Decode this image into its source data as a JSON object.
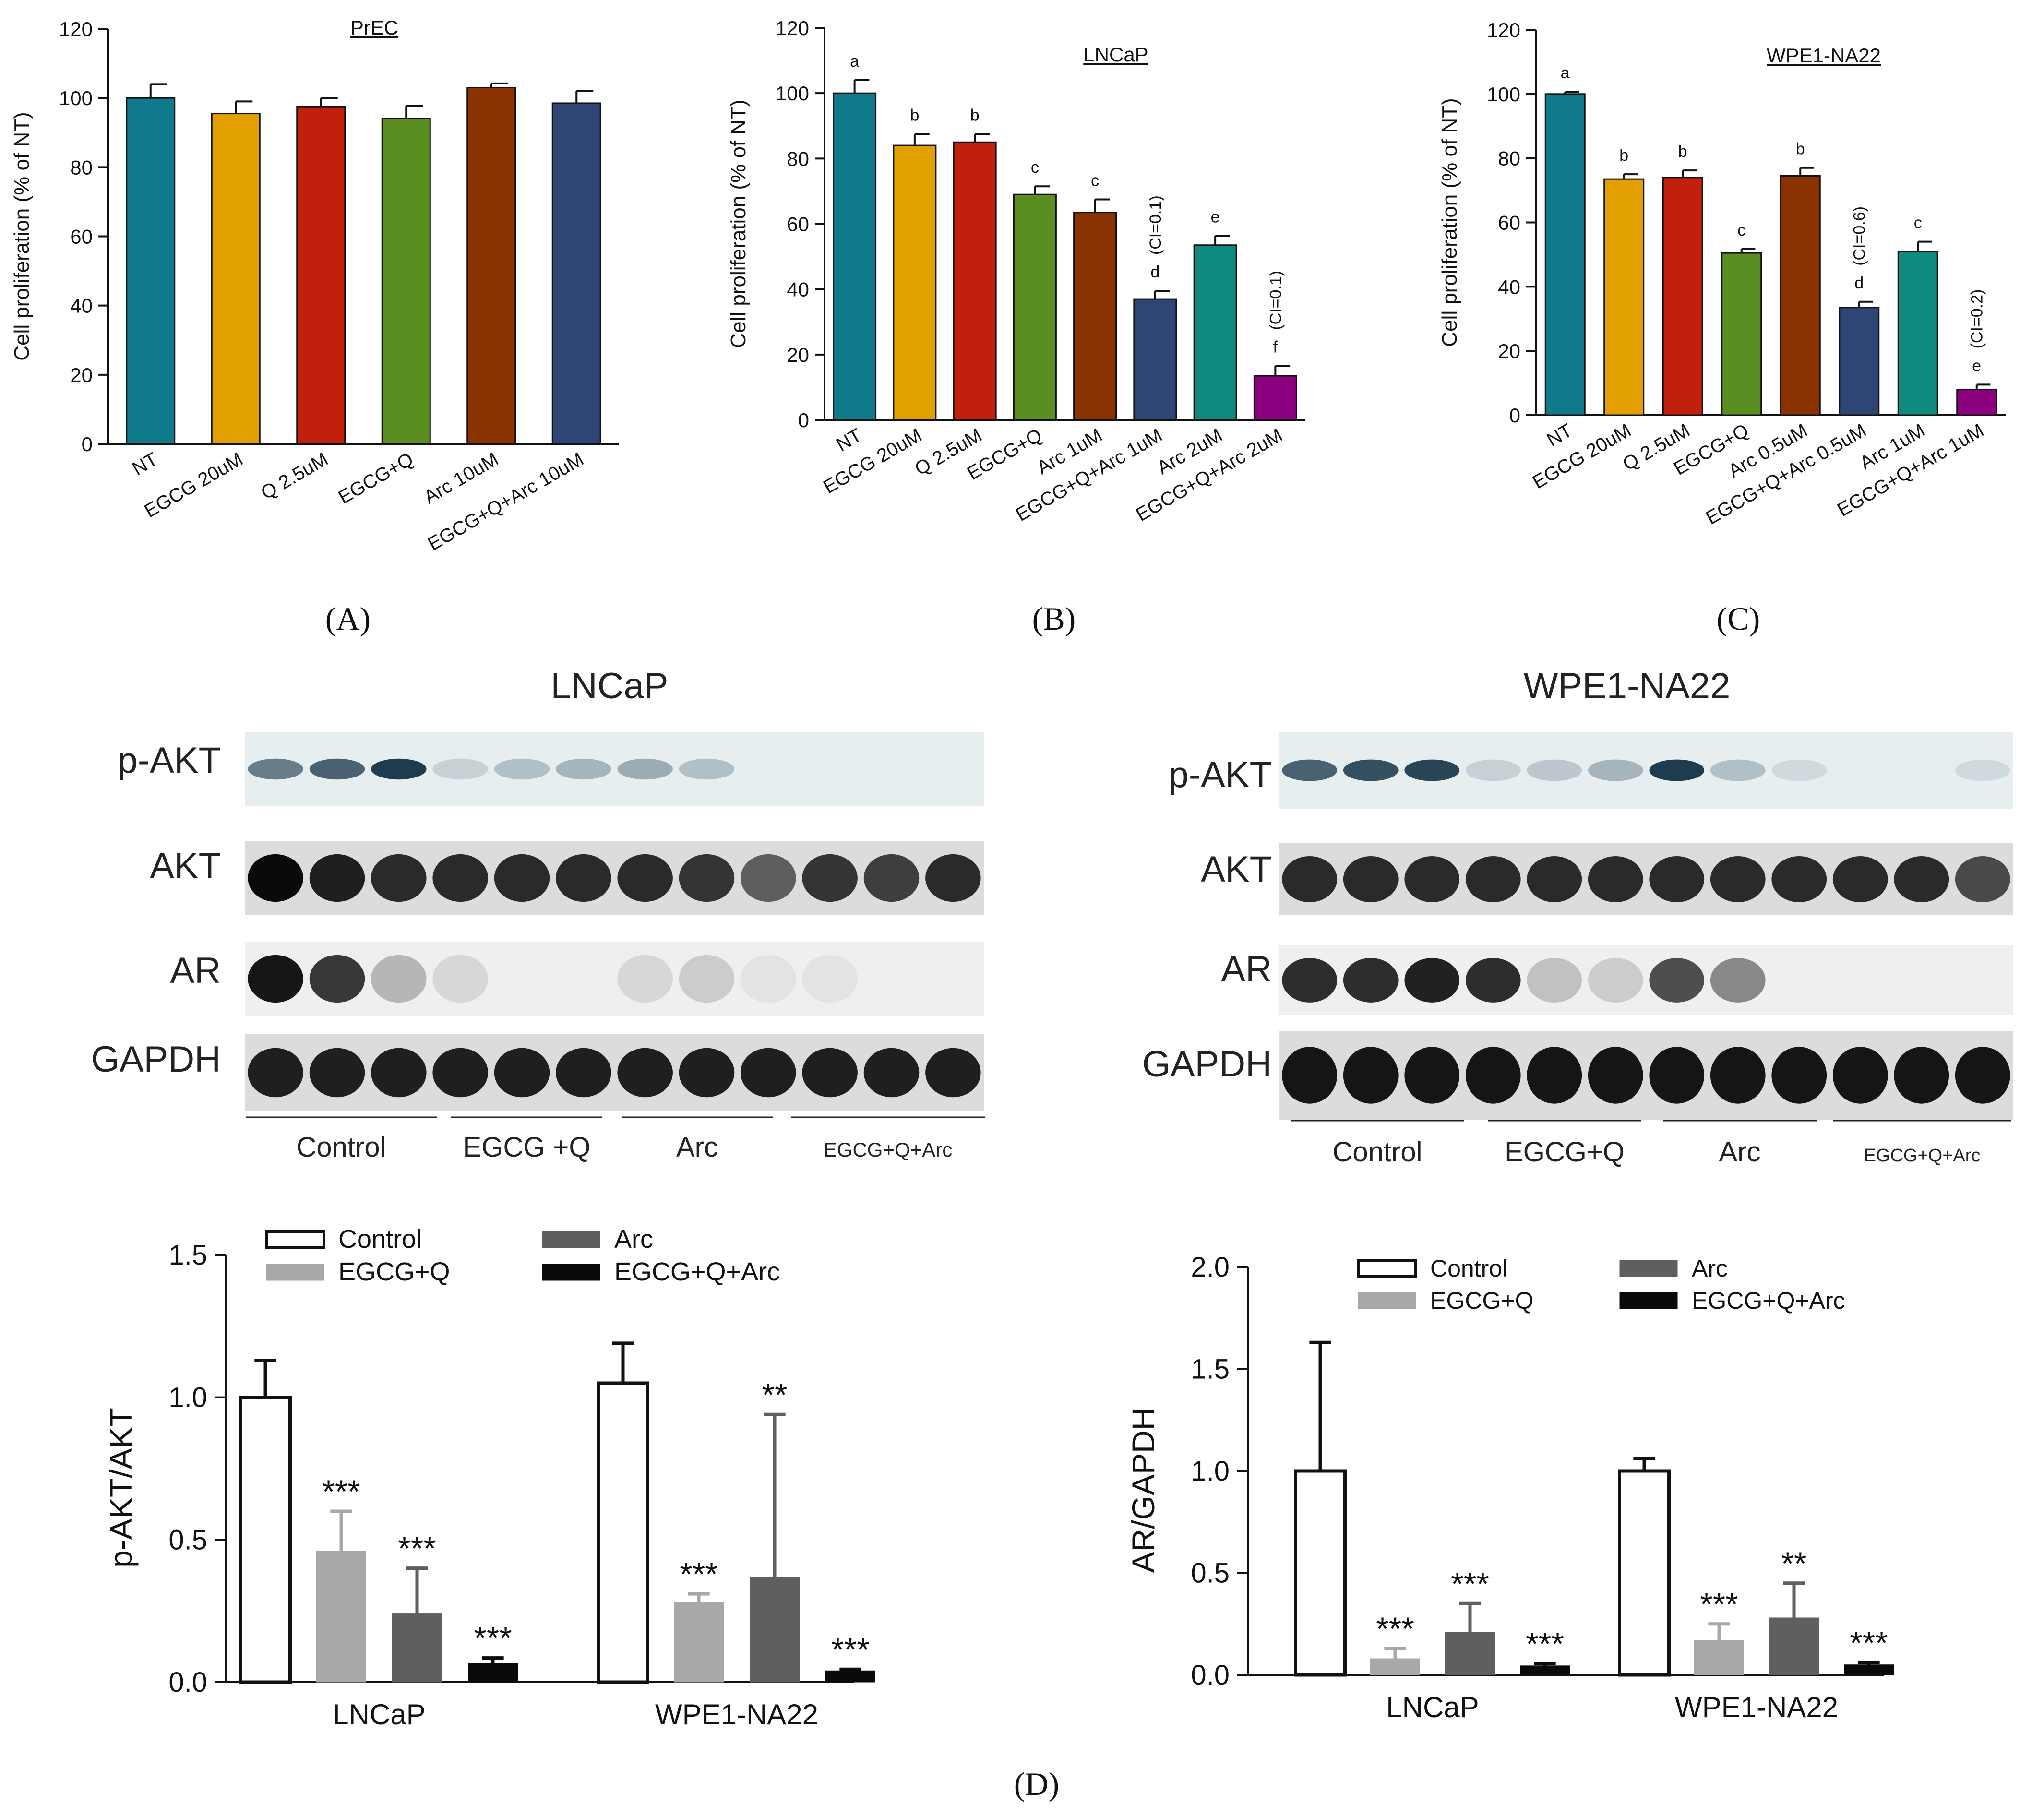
{
  "chart_data": [
    {
      "id": "A",
      "type": "bar",
      "title": "PrEC",
      "ylabel": "Cell proliferation (% of NT)",
      "ylim": [
        0,
        120
      ],
      "yticks": [
        "0",
        "20",
        "40",
        "60",
        "80",
        "100",
        "120"
      ],
      "categories": [
        "NT",
        "EGCG 20uM",
        "Q 2.5uM",
        "EGCG+Q",
        "Arc 10uM",
        "EGCG+Q+Arc 10uM"
      ],
      "values": [
        100,
        95.5,
        97.5,
        94,
        103,
        98.5
      ],
      "errors": [
        4,
        3.5,
        2.5,
        3.8,
        1.2,
        3.5
      ],
      "colors": [
        "#0e7a8c",
        "#e2a100",
        "#c0200c",
        "#5b8e20",
        "#8a3200",
        "#2f4576"
      ],
      "letters": [
        "",
        "",
        "",
        "",
        "",
        ""
      ],
      "ci": [
        "",
        "",
        "",
        "",
        "",
        ""
      ]
    },
    {
      "id": "B",
      "type": "bar",
      "title": "LNCaP",
      "ylabel": "Cell proliferation (% of NT)",
      "ylim": [
        0,
        120
      ],
      "yticks": [
        "0",
        "20",
        "40",
        "60",
        "80",
        "100",
        "120"
      ],
      "categories": [
        "NT",
        "EGCG 20uM",
        "Q 2.5uM",
        "EGCG+Q",
        "Arc 1uM",
        "EGCG+Q+Arc 1uM",
        "Arc 2uM",
        "EGCG+Q+Arc 2uM"
      ],
      "values": [
        100,
        84,
        85,
        69,
        63.5,
        37,
        53.5,
        13.5
      ],
      "errors": [
        4,
        3.5,
        2.5,
        2.5,
        4,
        2.5,
        2.8,
        3
      ],
      "colors": [
        "#0e7a8c",
        "#e2a100",
        "#c0200c",
        "#5b8e20",
        "#8a3200",
        "#2f4576",
        "#0f8a7e",
        "#8a007e"
      ],
      "letters": [
        "a",
        "b",
        "b",
        "c",
        "c",
        "d",
        "e",
        "f"
      ],
      "ci": [
        "",
        "",
        "",
        "",
        "",
        "(CI=0.1)",
        "",
        "(CI=0.1)"
      ]
    },
    {
      "id": "C",
      "type": "bar",
      "title": "WPE1-NA22",
      "ylabel": "Cell proliferation (% of NT)",
      "ylim": [
        0,
        120
      ],
      "yticks": [
        "0",
        "20",
        "40",
        "60",
        "80",
        "100",
        "120"
      ],
      "categories": [
        "NT",
        "EGCG 20uM",
        "Q 2.5uM",
        "EGCG+Q",
        "Arc 0.5uM",
        "EGCG+Q+Arc 0.5uM",
        "Arc 1uM",
        "EGCG+Q+Arc 1uM"
      ],
      "values": [
        100,
        73.5,
        74,
        50.5,
        74.5,
        33.5,
        51,
        8
      ],
      "errors": [
        0.7,
        1.5,
        2.2,
        1.2,
        2.5,
        1.8,
        3,
        1.5
      ],
      "colors": [
        "#0e7a8c",
        "#e2a100",
        "#c0200c",
        "#5b8e20",
        "#8a3200",
        "#2f4576",
        "#0f8a7e",
        "#8a007e"
      ],
      "letters": [
        "a",
        "b",
        "b",
        "c",
        "b",
        "d",
        "c",
        "e"
      ],
      "ci": [
        "",
        "",
        "",
        "",
        "",
        "(CI=0.6)",
        "",
        "(CI=0.2)"
      ]
    },
    {
      "id": "D1",
      "type": "bar",
      "ylabel": "p-AKT/AKT",
      "ylim": [
        0,
        1.5
      ],
      "yticks": [
        "0.0",
        "0.5",
        "1.0",
        "1.5"
      ],
      "groups": [
        "LNCaP",
        "WPE1-NA22"
      ],
      "series": [
        {
          "name": "Control",
          "values": [
            1.0,
            1.05
          ],
          "errors": [
            0.13,
            0.14
          ],
          "sig": [
            "",
            ""
          ]
        },
        {
          "name": "EGCG+Q",
          "values": [
            0.46,
            0.28
          ],
          "errors": [
            0.14,
            0.03
          ],
          "sig": [
            "***",
            "***"
          ]
        },
        {
          "name": "Arc",
          "values": [
            0.24,
            0.37
          ],
          "errors": [
            0.16,
            0.57
          ],
          "sig": [
            "***",
            "**"
          ]
        },
        {
          "name": "EGCG+Q+Arc",
          "values": [
            0.065,
            0.04
          ],
          "errors": [
            0.02,
            0.005
          ],
          "sig": [
            "***",
            "***"
          ]
        }
      ],
      "legend": [
        "Control",
        "EGCG+Q",
        "Arc",
        "EGCG+Q+Arc"
      ],
      "legend_position": "top"
    },
    {
      "id": "D2",
      "type": "bar",
      "ylabel": "AR/GAPDH",
      "ylim": [
        0,
        2.0
      ],
      "yticks": [
        "0.0",
        "0.5",
        "1.0",
        "1.5",
        "2.0"
      ],
      "groups": [
        "LNCaP",
        "WPE1-NA22"
      ],
      "series": [
        {
          "name": "Control",
          "values": [
            1.0,
            1.0
          ],
          "errors": [
            0.63,
            0.06
          ],
          "sig": [
            "",
            ""
          ]
        },
        {
          "name": "EGCG+Q",
          "values": [
            0.08,
            0.17
          ],
          "errors": [
            0.05,
            0.08
          ],
          "sig": [
            "***",
            "***"
          ]
        },
        {
          "name": "Arc",
          "values": [
            0.21,
            0.28
          ],
          "errors": [
            0.14,
            0.17
          ],
          "sig": [
            "***",
            "**"
          ]
        },
        {
          "name": "EGCG+Q+Arc",
          "values": [
            0.045,
            0.05
          ],
          "errors": [
            0.01,
            0.01
          ],
          "sig": [
            "***",
            "***"
          ]
        }
      ],
      "legend": [
        "Control",
        "EGCG+Q",
        "Arc",
        "EGCG+Q+Arc"
      ],
      "legend_position": "top"
    }
  ],
  "series_colors": {
    "Control": "#ffffff",
    "EGCG+Q": "#a6a8aa",
    "Arc": "#5f5f5f",
    "EGCG+Q+Arc": "#0a0a0a"
  },
  "panel_labels": {
    "A": "(A)",
    "B": "(B)",
    "C": "(C)",
    "D": "(D)"
  },
  "western_blots": [
    {
      "id": "wb-lncap",
      "title": "LNCaP",
      "rows": [
        "p-AKT",
        "AKT",
        "AR",
        "GAPDH"
      ],
      "groups": [
        "Control",
        "EGCG +Q",
        "Arc",
        "EGCG+Q+Arc"
      ],
      "intensity": [
        [
          0.6,
          0.75,
          0.95,
          0.15,
          0.25,
          0.3,
          0.35,
          0.25,
          0,
          0,
          0,
          0
        ],
        [
          1.0,
          0.9,
          0.85,
          0.85,
          0.85,
          0.85,
          0.85,
          0.8,
          0.6,
          0.8,
          0.75,
          0.85
        ],
        [
          0.95,
          0.8,
          0.25,
          0.1,
          0,
          0,
          0.1,
          0.15,
          0.05,
          0.05,
          0,
          0
        ],
        [
          0.9,
          0.9,
          0.9,
          0.9,
          0.9,
          0.9,
          0.9,
          0.9,
          0.9,
          0.9,
          0.9,
          0.9
        ]
      ]
    },
    {
      "id": "wb-wpe1",
      "title": "WPE1-NA22",
      "rows": [
        "p-AKT",
        "AKT",
        "AR",
        "GAPDH"
      ],
      "groups": [
        "Control",
        "EGCG+Q",
        "Arc",
        "EGCG+Q+Arc"
      ],
      "intensity": [
        [
          0.75,
          0.85,
          0.9,
          0.15,
          0.2,
          0.3,
          0.95,
          0.25,
          0.1,
          0,
          0,
          0.1
        ],
        [
          0.85,
          0.85,
          0.85,
          0.85,
          0.85,
          0.85,
          0.85,
          0.85,
          0.85,
          0.85,
          0.85,
          0.7
        ],
        [
          0.85,
          0.85,
          0.9,
          0.85,
          0.2,
          0.15,
          0.7,
          0.45,
          0,
          0,
          0,
          0
        ],
        [
          0.95,
          0.95,
          0.95,
          0.95,
          0.95,
          0.95,
          0.95,
          0.95,
          0.95,
          0.95,
          0.95,
          0.95
        ]
      ]
    }
  ]
}
